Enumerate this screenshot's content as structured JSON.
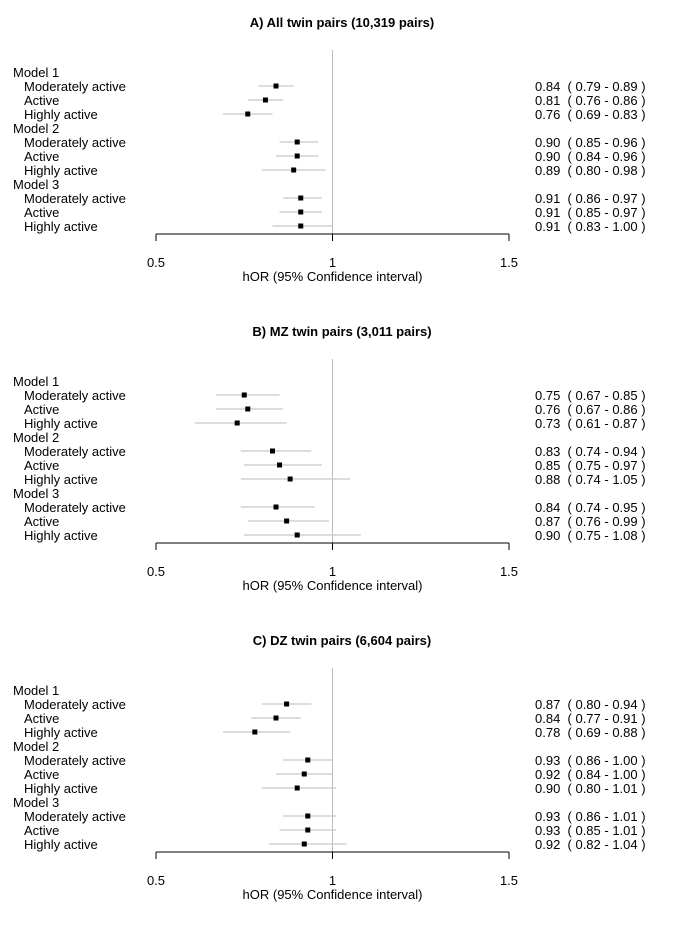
{
  "chart_data": [
    {
      "type": "forest",
      "title": "A) All twin pairs (10,319 pairs)",
      "xlabel": "hOR (95% Confidence interval)",
      "xlim": [
        0.5,
        1.5
      ],
      "xticks": [
        "0.5",
        "1",
        "1.5"
      ],
      "reference_line": 1,
      "groups": [
        {
          "name": "Model 1",
          "rows": [
            {
              "label": "Moderately active",
              "est": 0.84,
              "lo": 0.79,
              "hi": 0.89,
              "text": "0.84  ( 0.79 - 0.89 )"
            },
            {
              "label": "Active",
              "est": 0.81,
              "lo": 0.76,
              "hi": 0.86,
              "text": "0.81  ( 0.76 - 0.86 )"
            },
            {
              "label": "Highly active",
              "est": 0.76,
              "lo": 0.69,
              "hi": 0.83,
              "text": "0.76  ( 0.69 - 0.83 )"
            }
          ]
        },
        {
          "name": "Model 2",
          "rows": [
            {
              "label": "Moderately active",
              "est": 0.9,
              "lo": 0.85,
              "hi": 0.96,
              "text": "0.90  ( 0.85 - 0.96 )"
            },
            {
              "label": "Active",
              "est": 0.9,
              "lo": 0.84,
              "hi": 0.96,
              "text": "0.90  ( 0.84 - 0.96 )"
            },
            {
              "label": "Highly active",
              "est": 0.89,
              "lo": 0.8,
              "hi": 0.98,
              "text": "0.89  ( 0.80 - 0.98 )"
            }
          ]
        },
        {
          "name": "Model 3",
          "rows": [
            {
              "label": "Moderately active",
              "est": 0.91,
              "lo": 0.86,
              "hi": 0.97,
              "text": "0.91  ( 0.86 - 0.97 )"
            },
            {
              "label": "Active",
              "est": 0.91,
              "lo": 0.85,
              "hi": 0.97,
              "text": "0.91  ( 0.85 - 0.97 )"
            },
            {
              "label": "Highly active",
              "est": 0.91,
              "lo": 0.83,
              "hi": 1.0,
              "text": "0.91  ( 0.83 - 1.00 )"
            }
          ]
        }
      ]
    },
    {
      "type": "forest",
      "title": "B) MZ twin pairs (3,011 pairs)",
      "xlabel": "hOR (95% Confidence interval)",
      "xlim": [
        0.5,
        1.5
      ],
      "xticks": [
        "0.5",
        "1",
        "1.5"
      ],
      "reference_line": 1,
      "groups": [
        {
          "name": "Model 1",
          "rows": [
            {
              "label": "Moderately active",
              "est": 0.75,
              "lo": 0.67,
              "hi": 0.85,
              "text": "0.75  ( 0.67 - 0.85 )"
            },
            {
              "label": "Active",
              "est": 0.76,
              "lo": 0.67,
              "hi": 0.86,
              "text": "0.76  ( 0.67 - 0.86 )"
            },
            {
              "label": "Highly active",
              "est": 0.73,
              "lo": 0.61,
              "hi": 0.87,
              "text": "0.73  ( 0.61 - 0.87 )"
            }
          ]
        },
        {
          "name": "Model 2",
          "rows": [
            {
              "label": "Moderately active",
              "est": 0.83,
              "lo": 0.74,
              "hi": 0.94,
              "text": "0.83  ( 0.74 - 0.94 )"
            },
            {
              "label": "Active",
              "est": 0.85,
              "lo": 0.75,
              "hi": 0.97,
              "text": "0.85  ( 0.75 - 0.97 )"
            },
            {
              "label": "Highly active",
              "est": 0.88,
              "lo": 0.74,
              "hi": 1.05,
              "text": "0.88  ( 0.74 - 1.05 )"
            }
          ]
        },
        {
          "name": "Model 3",
          "rows": [
            {
              "label": "Moderately active",
              "est": 0.84,
              "lo": 0.74,
              "hi": 0.95,
              "text": "0.84  ( 0.74 - 0.95 )"
            },
            {
              "label": "Active",
              "est": 0.87,
              "lo": 0.76,
              "hi": 0.99,
              "text": "0.87  ( 0.76 - 0.99 )"
            },
            {
              "label": "Highly active",
              "est": 0.9,
              "lo": 0.75,
              "hi": 1.08,
              "text": "0.90  ( 0.75 - 1.08 )"
            }
          ]
        }
      ]
    },
    {
      "type": "forest",
      "title": "C) DZ twin pairs (6,604 pairs)",
      "xlabel": "hOR (95% Confidence interval)",
      "xlim": [
        0.5,
        1.5
      ],
      "xticks": [
        "0.5",
        "1",
        "1.5"
      ],
      "reference_line": 1,
      "groups": [
        {
          "name": "Model 1",
          "rows": [
            {
              "label": "Moderately active",
              "est": 0.87,
              "lo": 0.8,
              "hi": 0.94,
              "text": "0.87  ( 0.80 - 0.94 )"
            },
            {
              "label": "Active",
              "est": 0.84,
              "lo": 0.77,
              "hi": 0.91,
              "text": "0.84  ( 0.77 - 0.91 )"
            },
            {
              "label": "Highly active",
              "est": 0.78,
              "lo": 0.69,
              "hi": 0.88,
              "text": "0.78  ( 0.69 - 0.88 )"
            }
          ]
        },
        {
          "name": "Model 2",
          "rows": [
            {
              "label": "Moderately active",
              "est": 0.93,
              "lo": 0.86,
              "hi": 1.0,
              "text": "0.93  ( 0.86 - 1.00 )"
            },
            {
              "label": "Active",
              "est": 0.92,
              "lo": 0.84,
              "hi": 1.0,
              "text": "0.92  ( 0.84 - 1.00 )"
            },
            {
              "label": "Highly active",
              "est": 0.9,
              "lo": 0.8,
              "hi": 1.01,
              "text": "0.90  ( 0.80 - 1.01 )"
            }
          ]
        },
        {
          "name": "Model 3",
          "rows": [
            {
              "label": "Moderately active",
              "est": 0.93,
              "lo": 0.86,
              "hi": 1.01,
              "text": "0.93  ( 0.86 - 1.01 )"
            },
            {
              "label": "Active",
              "est": 0.93,
              "lo": 0.85,
              "hi": 1.01,
              "text": "0.93  ( 0.85 - 1.01 )"
            },
            {
              "label": "Highly active",
              "est": 0.92,
              "lo": 0.82,
              "hi": 1.04,
              "text": "0.92  ( 0.82 - 1.04 )"
            }
          ]
        }
      ]
    }
  ]
}
